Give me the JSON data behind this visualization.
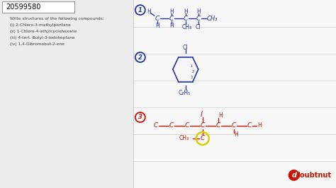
{
  "background_color": "#f8f8f8",
  "title_box": "20599580",
  "problem_text": [
    "Write structures of the following compounds:",
    "(i) 2-Chloro-3-methylpentane",
    "(ii) 1-Chloro-4-ethylcyclohexane",
    "(iii) 4-tert. Butyl-3-iodoheptane",
    "(iv) 1,4-Dibromobut-2-ene"
  ],
  "struct_color_blue": "#2233aa",
  "struct_color_red": "#cc1100",
  "grid_color": "#d0d0d0",
  "left_panel_color": "#ececec",
  "yellow_circle_color": "#ddcc00",
  "doubtnut_color": "#cc1100"
}
